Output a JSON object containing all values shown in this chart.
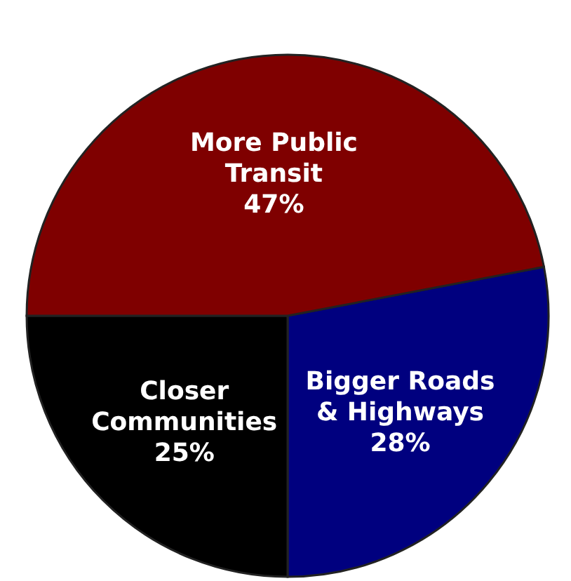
{
  "chart_data": {
    "type": "pie",
    "categories": [
      "Bigger Roads\n& Highways",
      "Closer\nCommunities",
      "More Public\nTransit"
    ],
    "values": [
      28,
      25,
      47
    ],
    "value_labels": [
      "28%",
      "25%",
      "47%"
    ],
    "colors": [
      "#00007f",
      "#000000",
      "#7f0000"
    ]
  }
}
